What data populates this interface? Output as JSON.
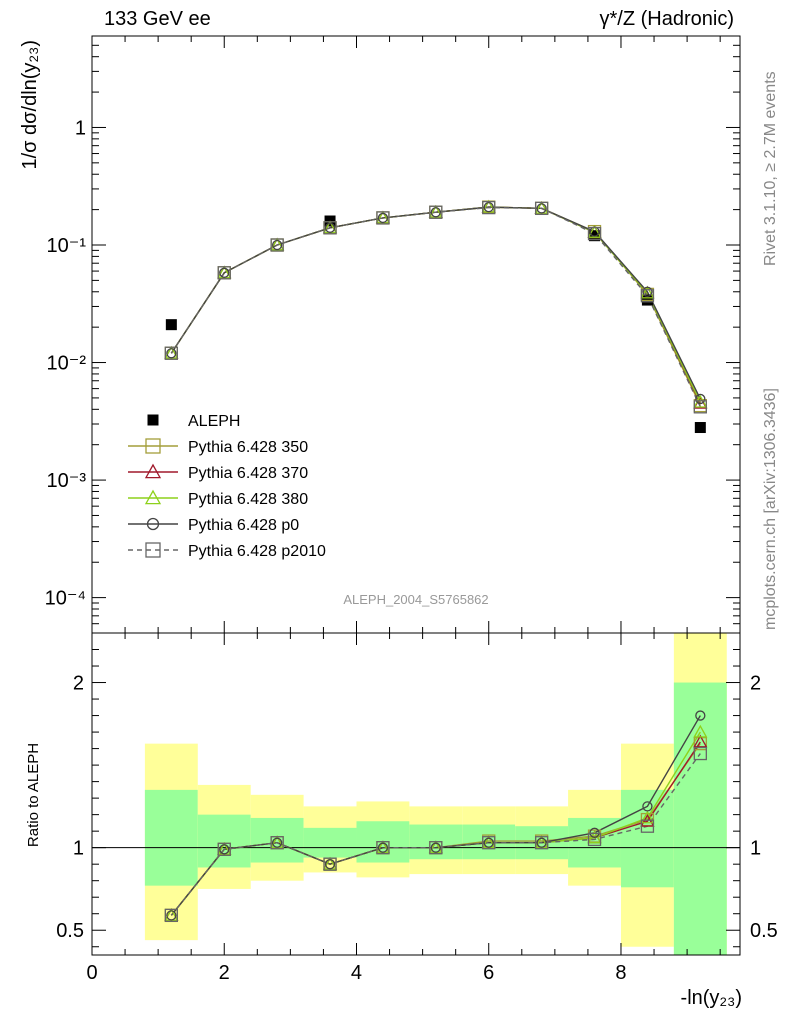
{
  "header": {
    "energy_label": "133 GeV ee",
    "process_label": "γ*/Z (Hadronic)"
  },
  "side_labels": {
    "rivet": "Rivet 3.1.10, ≥ 2.7M events",
    "mcplots": "mcplots.cern.ch [arXiv:1306.3436]"
  },
  "analysis_id": "ALEPH_2004_S5765862",
  "colors": {
    "ALEPH": "#000000",
    "Pythia 6.428 350": "#a39e3a",
    "Pythia 6.428 370": "#a0192b",
    "Pythia 6.428 380": "#8ed11b",
    "Pythia 6.428 p0": "#444444",
    "Pythia 6.428 p2010": "#666666",
    "band_inner": "#99ff99",
    "band_outer": "#ffff99"
  },
  "chart_data": [
    {
      "type": "scatter",
      "panel": "main",
      "ylabel": "1/σ  dσ/dln(y₂₃)",
      "yscale": "log",
      "ylim": [
        5e-05,
        6
      ],
      "xlim": [
        0,
        9.8
      ],
      "y_tick_labels": [
        "10⁻⁴",
        "10⁻³",
        "10⁻²",
        "10⁻¹",
        "1"
      ],
      "legend_position": "lower-left",
      "series": [
        {
          "name": "ALEPH",
          "marker": "filled-square",
          "x": [
            1.2,
            3.6,
            7.6,
            8.4,
            9.2
          ],
          "y": [
            0.021,
            0.16,
            0.12,
            0.034,
            0.0028
          ]
        },
        {
          "name": "Pythia 6.428 350",
          "marker": "open-square",
          "line": "solid",
          "x": [
            1.2,
            2.0,
            2.8,
            3.6,
            4.4,
            5.2,
            6.0,
            6.8,
            7.6,
            8.4,
            9.2
          ],
          "y": [
            0.012,
            0.058,
            0.1,
            0.14,
            0.17,
            0.19,
            0.21,
            0.205,
            0.13,
            0.038,
            0.0043
          ]
        },
        {
          "name": "Pythia 6.428 370",
          "marker": "open-triangle",
          "line": "solid",
          "x": [
            1.2,
            2.0,
            2.8,
            3.6,
            4.4,
            5.2,
            6.0,
            6.8,
            7.6,
            8.4,
            9.2
          ],
          "y": [
            0.012,
            0.058,
            0.1,
            0.14,
            0.17,
            0.19,
            0.21,
            0.205,
            0.128,
            0.039,
            0.0045
          ]
        },
        {
          "name": "Pythia 6.428 380",
          "marker": "open-triangle",
          "line": "solid",
          "x": [
            1.2,
            2.0,
            2.8,
            3.6,
            4.4,
            5.2,
            6.0,
            6.8,
            7.6,
            8.4,
            9.2
          ],
          "y": [
            0.012,
            0.058,
            0.1,
            0.14,
            0.17,
            0.19,
            0.21,
            0.205,
            0.128,
            0.039,
            0.0046
          ]
        },
        {
          "name": "Pythia 6.428 p0",
          "marker": "open-circle",
          "line": "solid",
          "x": [
            1.2,
            2.0,
            2.8,
            3.6,
            4.4,
            5.2,
            6.0,
            6.8,
            7.6,
            8.4,
            9.2
          ],
          "y": [
            0.012,
            0.058,
            0.1,
            0.14,
            0.17,
            0.19,
            0.21,
            0.205,
            0.13,
            0.04,
            0.0049
          ]
        },
        {
          "name": "Pythia 6.428 p2010",
          "marker": "open-square",
          "line": "dashed",
          "x": [
            1.2,
            2.0,
            2.8,
            3.6,
            4.4,
            5.2,
            6.0,
            6.8,
            7.6,
            8.4,
            9.2
          ],
          "y": [
            0.012,
            0.058,
            0.1,
            0.14,
            0.17,
            0.19,
            0.208,
            0.205,
            0.125,
            0.037,
            0.0042
          ]
        }
      ]
    },
    {
      "type": "line",
      "panel": "ratio",
      "ylabel": "Ratio to ALEPH",
      "xlabel": "-ln(y₂₃)",
      "ylim": [
        0.35,
        2.3
      ],
      "xlim": [
        0,
        9.8
      ],
      "x_tick_labels": [
        "0",
        "2",
        "4",
        "6",
        "8"
      ],
      "y_tick_labels": [
        "0.5",
        "1",
        "2"
      ],
      "bands": [
        {
          "x_low": 0.8,
          "x_high": 1.6,
          "inner": [
            0.77,
            1.35
          ],
          "outer": [
            0.44,
            1.63
          ]
        },
        {
          "x_low": 1.6,
          "x_high": 2.4,
          "inner": [
            0.88,
            1.2
          ],
          "outer": [
            0.75,
            1.38
          ]
        },
        {
          "x_low": 2.4,
          "x_high": 3.2,
          "inner": [
            0.91,
            1.18
          ],
          "outer": [
            0.8,
            1.32
          ]
        },
        {
          "x_low": 3.2,
          "x_high": 4.0,
          "inner": [
            0.94,
            1.12
          ],
          "outer": [
            0.85,
            1.25
          ]
        },
        {
          "x_low": 4.0,
          "x_high": 4.8,
          "inner": [
            0.91,
            1.16
          ],
          "outer": [
            0.82,
            1.28
          ]
        },
        {
          "x_low": 4.8,
          "x_high": 5.6,
          "inner": [
            0.93,
            1.14
          ],
          "outer": [
            0.84,
            1.25
          ]
        },
        {
          "x_low": 5.6,
          "x_high": 6.4,
          "inner": [
            0.93,
            1.14
          ],
          "outer": [
            0.84,
            1.25
          ]
        },
        {
          "x_low": 6.4,
          "x_high": 7.2,
          "inner": [
            0.93,
            1.13
          ],
          "outer": [
            0.84,
            1.25
          ]
        },
        {
          "x_low": 7.2,
          "x_high": 8.0,
          "inner": [
            0.88,
            1.18
          ],
          "outer": [
            0.77,
            1.35
          ]
        },
        {
          "x_low": 8.0,
          "x_high": 8.8,
          "inner": [
            0.76,
            1.35
          ],
          "outer": [
            0.4,
            1.63
          ]
        },
        {
          "x_low": 8.8,
          "x_high": 9.6,
          "inner": [
            0.3,
            2.0
          ],
          "outer": [
            0.3,
            2.6
          ]
        }
      ],
      "series": [
        {
          "name": "Pythia 6.428 350",
          "x": [
            1.2,
            2.0,
            2.8,
            3.6,
            4.4,
            5.2,
            6.0,
            6.8,
            7.6,
            8.4,
            9.2
          ],
          "y": [
            0.59,
            0.99,
            1.03,
            0.9,
            1.0,
            1.0,
            1.04,
            1.04,
            1.07,
            1.17,
            1.63
          ]
        },
        {
          "name": "Pythia 6.428 370",
          "x": [
            1.2,
            2.0,
            2.8,
            3.6,
            4.4,
            5.2,
            6.0,
            6.8,
            7.6,
            8.4,
            9.2
          ],
          "y": [
            0.59,
            0.99,
            1.03,
            0.9,
            1.0,
            1.0,
            1.03,
            1.03,
            1.06,
            1.16,
            1.64
          ]
        },
        {
          "name": "Pythia 6.428 380",
          "x": [
            1.2,
            2.0,
            2.8,
            3.6,
            4.4,
            5.2,
            6.0,
            6.8,
            7.6,
            8.4,
            9.2
          ],
          "y": [
            0.59,
            0.99,
            1.03,
            0.9,
            1.0,
            1.0,
            1.03,
            1.03,
            1.06,
            1.18,
            1.7
          ]
        },
        {
          "name": "Pythia 6.428 p0",
          "x": [
            1.2,
            2.0,
            2.8,
            3.6,
            4.4,
            5.2,
            6.0,
            6.8,
            7.6,
            8.4,
            9.2
          ],
          "y": [
            0.59,
            0.99,
            1.03,
            0.9,
            1.0,
            1.0,
            1.03,
            1.03,
            1.09,
            1.25,
            1.8
          ]
        },
        {
          "name": "Pythia 6.428 p2010",
          "x": [
            1.2,
            2.0,
            2.8,
            3.6,
            4.4,
            5.2,
            6.0,
            6.8,
            7.6,
            8.4,
            9.2
          ],
          "y": [
            0.59,
            0.99,
            1.03,
            0.9,
            1.0,
            1.0,
            1.03,
            1.03,
            1.05,
            1.13,
            1.57
          ]
        }
      ]
    }
  ]
}
